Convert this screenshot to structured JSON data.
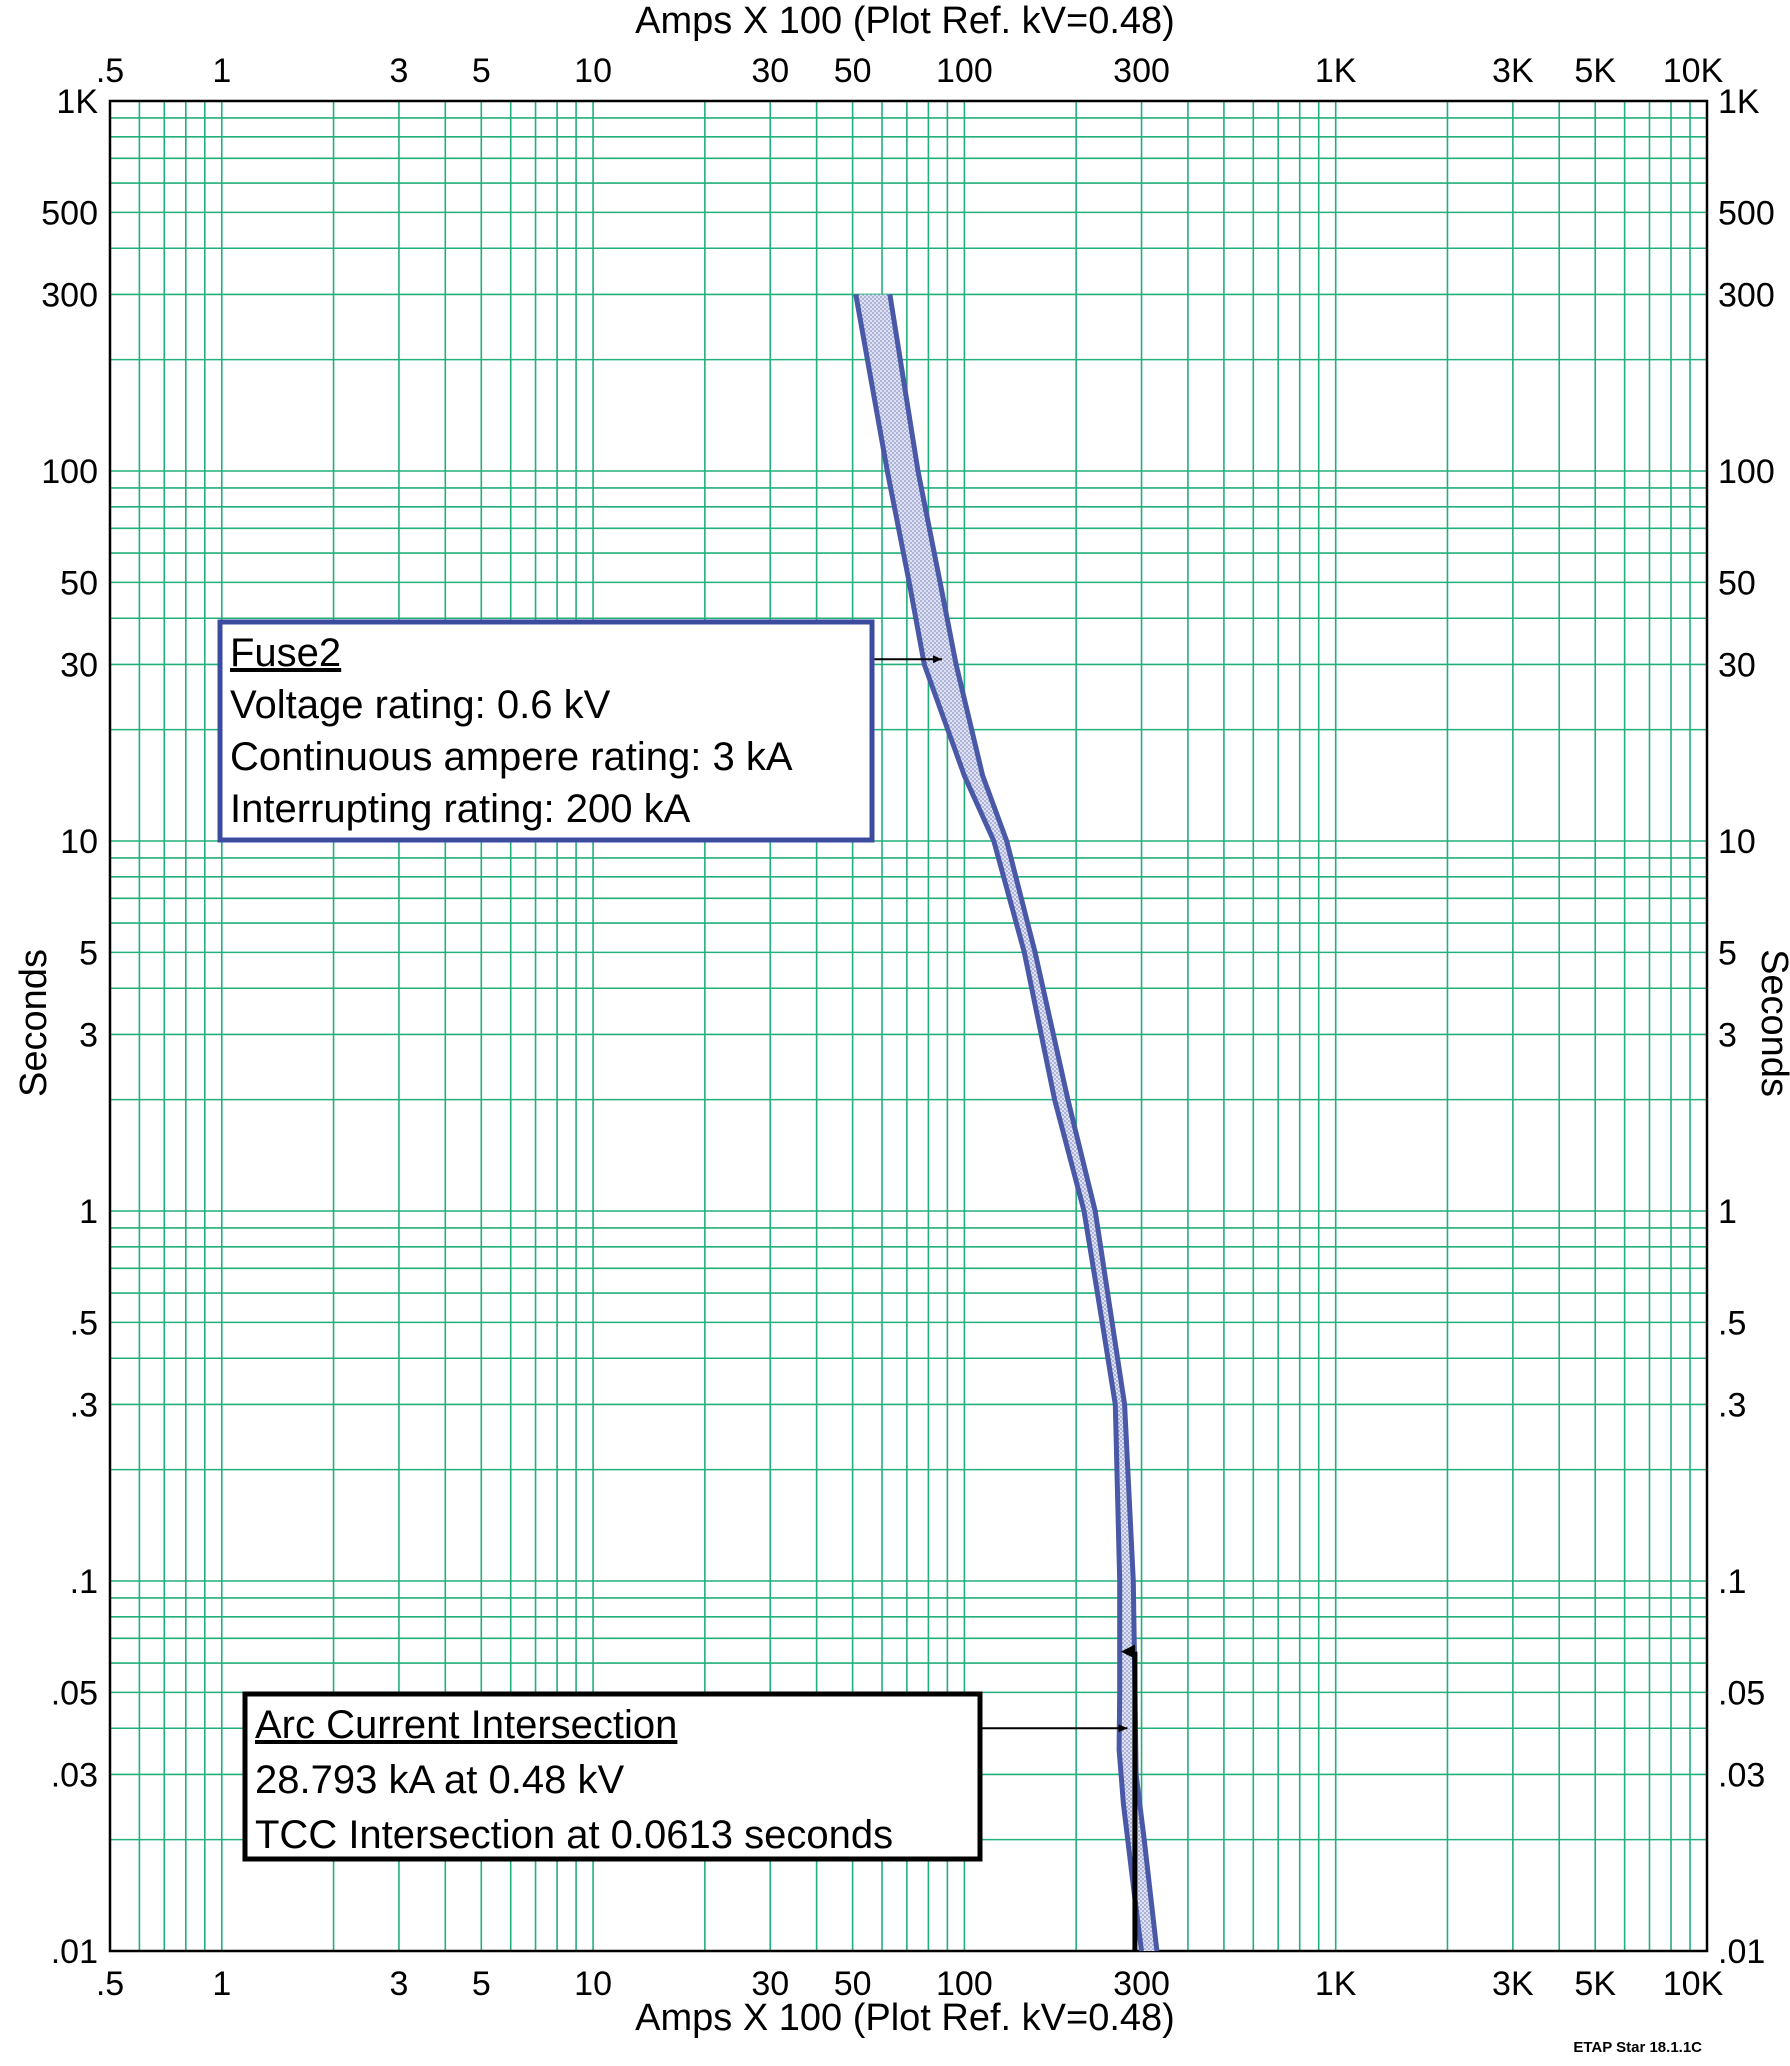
{
  "chart_data": {
    "type": "line",
    "x_scale": "log",
    "y_scale": "log",
    "xlim": [
      0.5,
      10000
    ],
    "ylim": [
      0.01,
      1000
    ],
    "xlabel_top": "Amps  X  100 (Plot Ref. kV=0.48)",
    "xlabel_bottom": "Amps  X  100 (Plot Ref. kV=0.48)",
    "ylabel_left": "Seconds",
    "ylabel_right": "Seconds",
    "grid": true,
    "x_tick_labels": [
      {
        "value": 0.5,
        "label": ".5"
      },
      {
        "value": 1,
        "label": "1"
      },
      {
        "value": 3,
        "label": "3"
      },
      {
        "value": 5,
        "label": "5"
      },
      {
        "value": 10,
        "label": "10"
      },
      {
        "value": 30,
        "label": "30"
      },
      {
        "value": 50,
        "label": "50"
      },
      {
        "value": 100,
        "label": "100"
      },
      {
        "value": 300,
        "label": "300"
      },
      {
        "value": 1000,
        "label": "1K"
      },
      {
        "value": 3000,
        "label": "3K"
      },
      {
        "value": 5000,
        "label": "5K"
      },
      {
        "value": 10000,
        "label": "10K"
      }
    ],
    "y_tick_labels": [
      {
        "value": 1000,
        "label": "1K"
      },
      {
        "value": 500,
        "label": "500"
      },
      {
        "value": 300,
        "label": "300"
      },
      {
        "value": 100,
        "label": "100"
      },
      {
        "value": 50,
        "label": "50"
      },
      {
        "value": 30,
        "label": "30"
      },
      {
        "value": 10,
        "label": "10"
      },
      {
        "value": 5,
        "label": "5"
      },
      {
        "value": 3,
        "label": "3"
      },
      {
        "value": 1,
        "label": "1"
      },
      {
        "value": 0.5,
        "label": ".5"
      },
      {
        "value": 0.3,
        "label": ".3"
      },
      {
        "value": 0.1,
        "label": ".1"
      },
      {
        "value": 0.05,
        "label": ".05"
      },
      {
        "value": 0.03,
        "label": ".03"
      },
      {
        "value": 0.01,
        "label": ".01"
      }
    ],
    "fuse_band": {
      "left_curve": [
        [
          51,
          300
        ],
        [
          62,
          100
        ],
        [
          71,
          50
        ],
        [
          78,
          30
        ],
        [
          100,
          15
        ],
        [
          120,
          10
        ],
        [
          145,
          5
        ],
        [
          175,
          2
        ],
        [
          210,
          1
        ],
        [
          235,
          0.5
        ],
        [
          255,
          0.3
        ],
        [
          262,
          0.1
        ],
        [
          262,
          0.05
        ],
        [
          261,
          0.035
        ],
        [
          268,
          0.025
        ],
        [
          285,
          0.015
        ],
        [
          300,
          0.01
        ]
      ],
      "right_curve": [
        [
          63,
          300
        ],
        [
          75,
          100
        ],
        [
          86,
          50
        ],
        [
          95,
          30
        ],
        [
          112,
          15
        ],
        [
          130,
          10
        ],
        [
          155,
          5
        ],
        [
          190,
          2
        ],
        [
          225,
          1
        ],
        [
          250,
          0.5
        ],
        [
          270,
          0.3
        ],
        [
          285,
          0.1
        ],
        [
          288,
          0.05
        ],
        [
          290,
          0.03
        ],
        [
          305,
          0.02
        ],
        [
          330,
          0.01
        ]
      ],
      "line_color": "#4a58a8",
      "fill_color": "#c9cde6"
    },
    "arc_current_line": {
      "x": 287.93,
      "y_from": 0.01,
      "y_to": 0.0613,
      "color": "#000000"
    },
    "annotations": [
      {
        "title": "Fuse2",
        "lines": [
          "Voltage rating: 0.6 kV",
          "Continuous ampere rating: 3 kA",
          "Interrupting rating: 200 kA"
        ],
        "border_color": "#3b4ba0",
        "pointer": {
          "x": 87,
          "y": 31
        }
      },
      {
        "title": "Arc Current Intersection",
        "lines": [
          "28.793 kA at 0.48 kV",
          "TCC Intersection at 0.0613 seconds"
        ],
        "border_color": "#000000",
        "pointer": {
          "x": 275,
          "y": 0.04
        }
      }
    ],
    "colors": {
      "grid": "#22b07a",
      "axis": "#000000"
    },
    "footer": "ETAP Star 18.1.1C"
  }
}
